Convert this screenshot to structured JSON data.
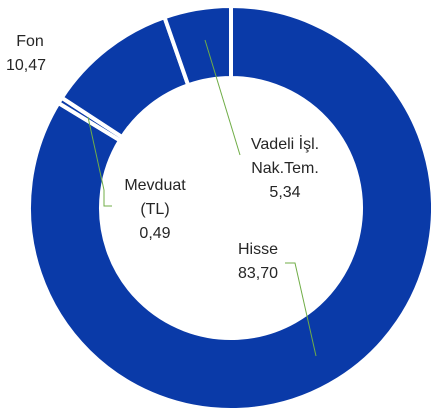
{
  "chart_data": {
    "type": "donut",
    "categories": [
      "Hisse",
      "Mevduat (TL)",
      "Fon",
      "Vadeli İşl. Nak.Tem."
    ],
    "values": [
      83.7,
      0.49,
      10.47,
      5.34
    ],
    "value_labels": [
      "83,70",
      "0,49",
      "10,47",
      "5,34"
    ],
    "color": "#0a3aa8"
  }
}
